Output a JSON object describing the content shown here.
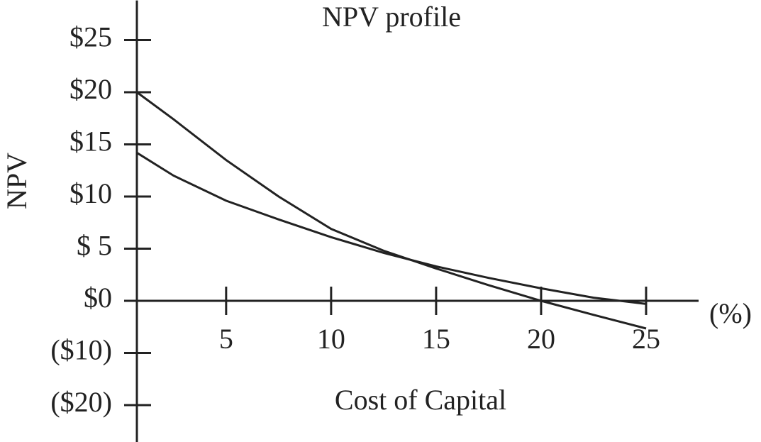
{
  "chart_data": {
    "type": "line",
    "title": "NPV profile",
    "x_label": "Cost of Capital",
    "x_unit_label": "(%)",
    "y_label": "NPV",
    "x": [
      0.75,
      2.5,
      5,
      7.5,
      10,
      12.5,
      15,
      17.5,
      20,
      22.5,
      25
    ],
    "series": [
      {
        "color": "#222222",
        "values": [
          20,
          17.4,
          13.5,
          10,
          6.9,
          4.8,
          3.1,
          1.5,
          0,
          -2.7,
          -5.3
        ]
      },
      {
        "color": "#222222",
        "values": [
          14.2,
          12,
          9.6,
          7.8,
          6.1,
          4.6,
          3.3,
          2.2,
          1.2,
          0.3,
          -0.6
        ]
      }
    ],
    "xlim": [
      0.75,
      27.5
    ],
    "xticks": [
      5,
      10,
      15,
      20,
      25
    ],
    "ylim": [
      -27.2,
      28.8
    ],
    "yticks": [
      {
        "value": -20,
        "label": "($20)"
      },
      {
        "value": -10,
        "label": "($10)"
      },
      {
        "value": 0,
        "label": "$0"
      },
      {
        "value": 5,
        "label": "$ 5"
      },
      {
        "value": 10,
        "label": "$10"
      },
      {
        "value": 15,
        "label": "$15"
      },
      {
        "value": 20,
        "label": "$20"
      },
      {
        "value": 25,
        "label": "$25"
      }
    ],
    "grid": false
  }
}
